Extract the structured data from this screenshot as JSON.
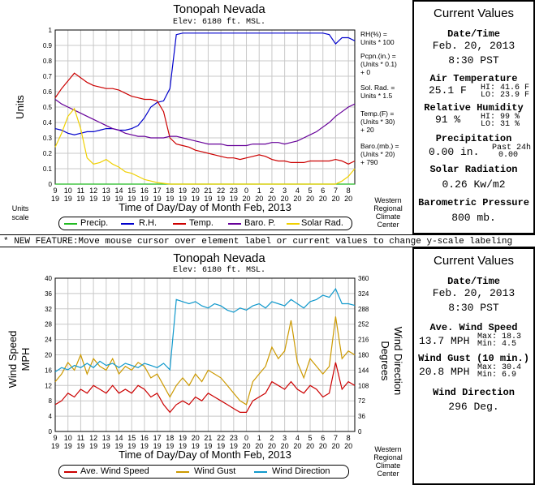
{
  "top": {
    "title": "Tonopah Nevada",
    "subtitle": "Elev: 6180 ft. MSL.",
    "ylabel": "Units",
    "units_scale": "Units\nscale",
    "xlabel": "Time of Day/Day of Month Feb, 2013",
    "wrcc": [
      "Western",
      "Regional",
      "Climate",
      "Center"
    ],
    "right_labels": [
      [
        "RH(%) =",
        "Units * 100"
      ],
      [
        "Pcpn.(in.) =",
        "(Units * 0.1)",
        "+ 0"
      ],
      [
        "Sol. Rad. =",
        "Units * 1.5"
      ],
      [
        "Temp.(F) =",
        "(Units * 30)",
        "+ 20"
      ],
      [
        "Baro.(mb.) =",
        "(Units * 20)",
        "+ 790"
      ]
    ],
    "legend": [
      {
        "label": "Precip.",
        "color": "#22bb22"
      },
      {
        "label": "R.H.",
        "color": "#0000cc"
      },
      {
        "label": "Temp.",
        "color": "#cc0000"
      },
      {
        "label": "Baro. P.",
        "color": "#660099"
      },
      {
        "label": "Solar Rad.",
        "color": "#f0d000"
      }
    ]
  },
  "bottom": {
    "title": "Tonopah Nevada",
    "subtitle": "Elev: 6180 ft. MSL.",
    "ylabel_left": [
      "Wind Speed",
      "MPH"
    ],
    "ylabel_right": [
      "Wind Direction",
      "Degrees"
    ],
    "xlabel": "Time of Day/Day of Month Feb, 2013",
    "wrcc": [
      "Western",
      "Regional",
      "Climate",
      "Center"
    ],
    "legend": [
      {
        "label": "Ave. Wind Speed",
        "color": "#cc0000"
      },
      {
        "label": "Wind Gust",
        "color": "#cc9900"
      },
      {
        "label": "Wind Direction",
        "color": "#1199cc"
      }
    ]
  },
  "banner": "* NEW FEATURE:Move mouse cursor over element label or current values to change y-scale labeling",
  "current_top": {
    "title": "Current Values",
    "date_label": "Date/Time",
    "date": "Feb. 20, 2013",
    "time": "8:30 PST",
    "air_label": "Air Temperature",
    "air_value": "25.1 F",
    "air_hi": "HI: 41.6 F",
    "air_lo": "LO: 23.9 F",
    "rh_label": "Relative Humidity",
    "rh_value": "91 %",
    "rh_hi": "HI: 99 %",
    "rh_lo": "LO: 31 %",
    "precip_label": "Precipitation",
    "precip_value": "0.00 in.",
    "precip_note1": "Past 24h",
    "precip_note2": "0.00",
    "solar_label": "Solar Radiation",
    "solar_value": "0.26 Kw/m2",
    "baro_label": "Barometric Pressure",
    "baro_value": "800 mb."
  },
  "current_bottom": {
    "title": "Current Values",
    "date_label": "Date/Time",
    "date": "Feb. 20, 2013",
    "time": "8:30 PST",
    "ws_label": "Ave. Wind Speed",
    "ws_value": "13.7 MPH",
    "ws_max": "Max: 18.3",
    "ws_min": "Min: 4.5",
    "gust_label": "Wind Gust (10 min.)",
    "gust_value": "20.8 MPH",
    "gust_max": "Max: 30.4",
    "gust_min": "Min: 6.9",
    "dir_label": "Wind Direction",
    "dir_value": "296 Deg."
  },
  "chart_data": [
    {
      "type": "line",
      "title": "Tonopah Nevada",
      "subtitle": "Elev: 6180 ft. MSL.",
      "xlabel": "Time of Day/Day of Month Feb, 2013",
      "ylabel": "Units",
      "ylim": [
        0,
        1
      ],
      "yticks": [
        "0",
        "0.1",
        "0.2",
        "0.3",
        "0.4",
        "0.5",
        "0.6",
        "0.7",
        "0.8",
        "0.9",
        "1"
      ],
      "x_ticks_top": [
        "9",
        "11",
        "13",
        "15",
        "17",
        "19",
        "21",
        "23",
        "1",
        "3",
        "5",
        "7",
        "9",
        "11",
        "13",
        "15",
        "17",
        "19",
        "21",
        "23",
        "1",
        "3",
        "5",
        "7"
      ],
      "x_ticks_bottom": [
        "19",
        "19",
        "19",
        "19",
        "19",
        "19",
        "19",
        "19",
        "19",
        "19",
        "19",
        "19",
        "19",
        "19",
        "19",
        "19",
        "19",
        "19",
        "19",
        "19",
        "20",
        "20",
        "20",
        "20"
      ],
      "x_tick_labels": [
        [
          "9",
          "19"
        ],
        [
          "10",
          "19"
        ],
        [
          "11",
          "19"
        ],
        [
          "12",
          "19"
        ],
        [
          "13",
          "19"
        ],
        [
          "14",
          "19"
        ],
        [
          "15",
          "19"
        ],
        [
          "16",
          "19"
        ],
        [
          "17",
          "19"
        ],
        [
          "18",
          "19"
        ],
        [
          "19",
          "19"
        ],
        [
          "20",
          "19"
        ],
        [
          "21",
          "19"
        ],
        [
          "22",
          "19"
        ],
        [
          "23",
          "19"
        ],
        [
          "0",
          "20"
        ],
        [
          "1",
          "20"
        ],
        [
          "2",
          "20"
        ],
        [
          "3",
          "20"
        ],
        [
          "4",
          "20"
        ],
        [
          "5",
          "20"
        ],
        [
          "6",
          "20"
        ],
        [
          "7",
          "20"
        ],
        [
          "8",
          "20"
        ]
      ],
      "x": [
        9,
        9.5,
        10,
        10.5,
        11,
        11.5,
        12,
        12.5,
        13,
        13.5,
        14,
        14.5,
        15,
        15.5,
        16,
        16.5,
        17,
        17.5,
        18,
        18.5,
        19,
        19.5,
        20,
        20.5,
        21,
        21.5,
        22,
        22.5,
        23,
        23.5,
        24,
        24.5,
        25,
        25.5,
        26,
        26.5,
        27,
        27.5,
        28,
        28.5,
        29,
        29.5,
        30,
        30.5,
        31,
        31.5,
        32,
        32.5
      ],
      "series": [
        {
          "name": "Precip.",
          "color": "#22bb22",
          "values": [
            0,
            0,
            0,
            0,
            0,
            0,
            0,
            0,
            0,
            0,
            0,
            0,
            0,
            0,
            0,
            0,
            0,
            0,
            0,
            0,
            0,
            0,
            0,
            0,
            0,
            0,
            0,
            0,
            0,
            0,
            0,
            0,
            0,
            0,
            0,
            0,
            0,
            0,
            0,
            0,
            0,
            0,
            0,
            0,
            0,
            0,
            0,
            0
          ]
        },
        {
          "name": "R.H.",
          "color": "#0000cc",
          "values": [
            0.36,
            0.35,
            0.33,
            0.32,
            0.33,
            0.34,
            0.34,
            0.35,
            0.36,
            0.36,
            0.35,
            0.35,
            0.36,
            0.38,
            0.43,
            0.5,
            0.53,
            0.54,
            0.62,
            0.97,
            0.98,
            0.98,
            0.98,
            0.98,
            0.98,
            0.98,
            0.98,
            0.98,
            0.98,
            0.98,
            0.98,
            0.98,
            0.98,
            0.98,
            0.98,
            0.98,
            0.98,
            0.98,
            0.98,
            0.98,
            0.98,
            0.98,
            0.98,
            0.97,
            0.91,
            0.95,
            0.95,
            0.93
          ]
        },
        {
          "name": "Temp.",
          "color": "#cc0000",
          "values": [
            0.56,
            0.62,
            0.67,
            0.72,
            0.69,
            0.66,
            0.64,
            0.63,
            0.62,
            0.62,
            0.61,
            0.59,
            0.57,
            0.56,
            0.55,
            0.55,
            0.54,
            0.47,
            0.3,
            0.26,
            0.25,
            0.24,
            0.22,
            0.21,
            0.2,
            0.19,
            0.18,
            0.17,
            0.17,
            0.16,
            0.17,
            0.18,
            0.19,
            0.18,
            0.16,
            0.15,
            0.15,
            0.14,
            0.14,
            0.14,
            0.15,
            0.15,
            0.15,
            0.15,
            0.16,
            0.15,
            0.13,
            0.15
          ]
        },
        {
          "name": "Baro. P.",
          "color": "#660099",
          "values": [
            0.55,
            0.52,
            0.5,
            0.48,
            0.46,
            0.44,
            0.42,
            0.4,
            0.38,
            0.36,
            0.35,
            0.33,
            0.32,
            0.31,
            0.31,
            0.3,
            0.3,
            0.3,
            0.31,
            0.31,
            0.3,
            0.29,
            0.28,
            0.27,
            0.26,
            0.26,
            0.26,
            0.25,
            0.25,
            0.25,
            0.25,
            0.26,
            0.26,
            0.26,
            0.27,
            0.27,
            0.26,
            0.27,
            0.28,
            0.3,
            0.32,
            0.34,
            0.37,
            0.4,
            0.44,
            0.47,
            0.5,
            0.52
          ]
        },
        {
          "name": "Solar Rad.",
          "color": "#f0d000",
          "values": [
            0.24,
            0.33,
            0.44,
            0.49,
            0.36,
            0.17,
            0.13,
            0.14,
            0.16,
            0.13,
            0.11,
            0.08,
            0.07,
            0.05,
            0.03,
            0.02,
            0.01,
            0.005,
            0,
            0,
            0,
            0,
            0,
            0,
            0,
            0,
            0,
            0,
            0,
            0,
            0,
            0,
            0,
            0,
            0,
            0,
            0,
            0,
            0,
            0,
            0,
            0,
            0,
            0,
            0,
            0.02,
            0.05,
            0.1
          ]
        }
      ],
      "legend": "bottom"
    },
    {
      "type": "line",
      "title": "Tonopah Nevada",
      "subtitle": "Elev: 6180 ft. MSL.",
      "xlabel": "Time of Day/Day of Month Feb, 2013",
      "ylabel": "Wind Speed MPH",
      "ylabel_right": "Wind Direction Degrees",
      "ylim": [
        0,
        40
      ],
      "ylim_right": [
        0,
        360
      ],
      "yticks": [
        "0",
        "4",
        "8",
        "12",
        "16",
        "20",
        "24",
        "28",
        "32",
        "36",
        "40"
      ],
      "yticks_right": [
        "0",
        "36",
        "72",
        "108",
        "144",
        "180",
        "216",
        "252",
        "288",
        "324",
        "360"
      ],
      "x_tick_labels": [
        [
          "9",
          "19"
        ],
        [
          "10",
          "19"
        ],
        [
          "11",
          "19"
        ],
        [
          "12",
          "19"
        ],
        [
          "13",
          "19"
        ],
        [
          "14",
          "19"
        ],
        [
          "15",
          "19"
        ],
        [
          "16",
          "19"
        ],
        [
          "17",
          "19"
        ],
        [
          "18",
          "19"
        ],
        [
          "19",
          "19"
        ],
        [
          "20",
          "19"
        ],
        [
          "21",
          "19"
        ],
        [
          "22",
          "19"
        ],
        [
          "23",
          "19"
        ],
        [
          "0",
          "20"
        ],
        [
          "1",
          "20"
        ],
        [
          "2",
          "20"
        ],
        [
          "3",
          "20"
        ],
        [
          "4",
          "20"
        ],
        [
          "5",
          "20"
        ],
        [
          "6",
          "20"
        ],
        [
          "7",
          "20"
        ],
        [
          "8",
          "20"
        ]
      ],
      "x": [
        9,
        9.5,
        10,
        10.5,
        11,
        11.5,
        12,
        12.5,
        13,
        13.5,
        14,
        14.5,
        15,
        15.5,
        16,
        16.5,
        17,
        17.5,
        18,
        18.5,
        19,
        19.5,
        20,
        20.5,
        21,
        21.5,
        22,
        22.5,
        23,
        23.5,
        24,
        24.5,
        25,
        25.5,
        26,
        26.5,
        27,
        27.5,
        28,
        28.5,
        29,
        29.5,
        30,
        30.5,
        31,
        31.5,
        32,
        32.5
      ],
      "series": [
        {
          "name": "Ave. Wind Speed",
          "color": "#cc0000",
          "axis": "left",
          "values": [
            7,
            8,
            10,
            9,
            11,
            10,
            12,
            11,
            10,
            12,
            10,
            11,
            10,
            12,
            11,
            9,
            10,
            7,
            5,
            7,
            8,
            7,
            9,
            8,
            10,
            9,
            8,
            7,
            6,
            5,
            5,
            8,
            9,
            10,
            13,
            12,
            11,
            13,
            11,
            10,
            12,
            11,
            9,
            10,
            18,
            11,
            13,
            12
          ]
        },
        {
          "name": "Wind Gust",
          "color": "#cc9900",
          "axis": "left",
          "values": [
            13,
            15,
            18,
            16,
            20,
            15,
            19,
            17,
            16,
            19,
            15,
            17,
            16,
            18,
            17,
            14,
            15,
            12,
            9,
            12,
            14,
            12,
            15,
            13,
            16,
            15,
            14,
            12,
            10,
            8,
            7,
            13,
            15,
            17,
            22,
            19,
            21,
            29,
            18,
            14,
            19,
            17,
            15,
            17,
            30,
            19,
            21,
            20
          ]
        },
        {
          "name": "Wind Direction",
          "color": "#1199cc",
          "axis": "right",
          "values": [
            140,
            150,
            145,
            155,
            150,
            160,
            150,
            165,
            155,
            160,
            150,
            160,
            155,
            150,
            160,
            155,
            150,
            160,
            145,
            310,
            305,
            300,
            305,
            295,
            290,
            300,
            295,
            285,
            280,
            290,
            285,
            295,
            300,
            290,
            305,
            300,
            295,
            310,
            300,
            290,
            305,
            310,
            320,
            315,
            335,
            300,
            300,
            296
          ]
        }
      ],
      "legend": "bottom"
    }
  ]
}
